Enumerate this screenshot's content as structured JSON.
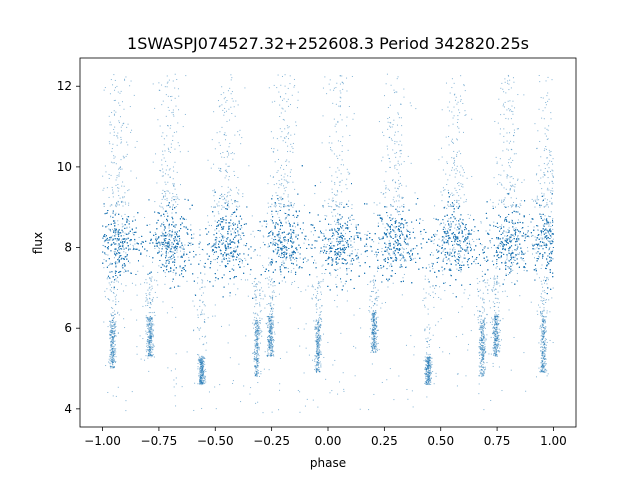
{
  "chart_data": {
    "type": "scatter",
    "title": "1SWASPJ074527.32+252608.3 Period 342820.25s",
    "xlabel": "phase",
    "ylabel": "flux",
    "xlim": [
      -1.1,
      1.1
    ],
    "ylim": [
      3.55,
      12.7
    ],
    "x_ticks": [
      -1.0,
      -0.75,
      -0.5,
      -0.25,
      0.0,
      0.25,
      0.5,
      0.75,
      1.0
    ],
    "x_tick_labels": [
      "−1.00",
      "−0.75",
      "−0.50",
      "−0.25",
      "0.00",
      "0.25",
      "0.50",
      "0.75",
      "1.00"
    ],
    "y_ticks": [
      4,
      6,
      8,
      10,
      12
    ],
    "y_tick_labels": [
      "4",
      "6",
      "8",
      "10",
      "12"
    ],
    "grid": false,
    "legend": "none",
    "marker_color": "#1f77b4",
    "baseline_flux": 8.1,
    "baseline_scatter": 0.45,
    "clump_centers_phase": [
      -0.93,
      -0.7,
      -0.45,
      -0.2,
      0.05,
      0.3,
      0.56,
      0.8,
      0.98
    ],
    "dip_groups": [
      {
        "phase": -0.955,
        "flux_low": 5.0,
        "flux_high": 6.2
      },
      {
        "phase": -0.79,
        "flux_low": 5.3,
        "flux_high": 6.3
      },
      {
        "phase": -0.56,
        "flux_low": 4.6,
        "flux_high": 5.3
      },
      {
        "phase": -0.315,
        "flux_low": 4.8,
        "flux_high": 6.2
      },
      {
        "phase": -0.255,
        "flux_low": 5.3,
        "flux_high": 6.3
      },
      {
        "phase": -0.045,
        "flux_low": 4.9,
        "flux_high": 6.2
      },
      {
        "phase": 0.205,
        "flux_low": 5.4,
        "flux_high": 6.4
      },
      {
        "phase": 0.445,
        "flux_low": 4.6,
        "flux_high": 5.3
      },
      {
        "phase": 0.685,
        "flux_low": 4.8,
        "flux_high": 6.2
      },
      {
        "phase": 0.745,
        "flux_low": 5.3,
        "flux_high": 6.3
      },
      {
        "phase": 0.955,
        "flux_low": 4.9,
        "flux_high": 6.3
      }
    ]
  }
}
